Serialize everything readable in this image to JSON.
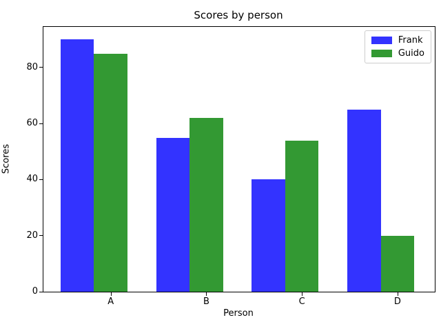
{
  "chart_data": {
    "type": "bar",
    "title": "Scores by person",
    "xlabel": "Person",
    "ylabel": "Scores",
    "categories": [
      "A",
      "B",
      "C",
      "D"
    ],
    "series": [
      {
        "name": "Frank",
        "color": "#3333ff",
        "values": [
          90,
          55,
          40,
          65
        ]
      },
      {
        "name": "Guido",
        "color": "#339933",
        "values": [
          85,
          62,
          54,
          20
        ]
      }
    ],
    "ylim": [
      0,
      94.5
    ],
    "yticks": [
      0,
      20,
      40,
      60,
      80
    ],
    "grid": false,
    "legend_position": "upper right",
    "background_color": "#ffffff",
    "text_color": "#000000"
  }
}
